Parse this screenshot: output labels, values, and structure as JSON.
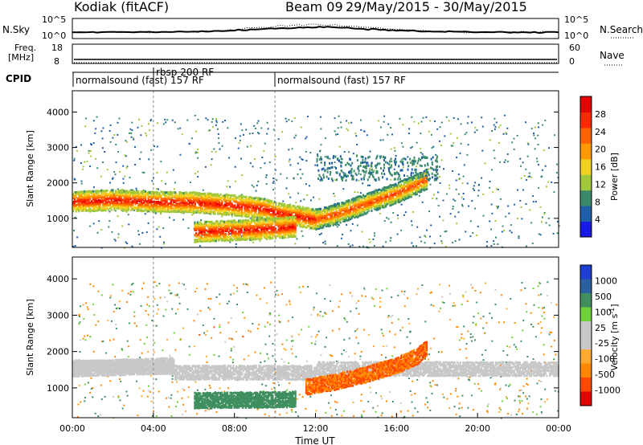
{
  "header": {
    "radar": "Kodiak (fitACF)",
    "beam": "Beam 09",
    "date_range": "29/May/2015 - 30/May/2015"
  },
  "param_labels": {
    "nsky": "N.Sky",
    "nsearch": "N.Search",
    "freq_line1": "Freq.",
    "freq_line2": "[MHz]",
    "nave": "Nave",
    "cpid": "CPID"
  },
  "param_ticks": {
    "noise_left_top": "10^5",
    "noise_left_bottom": "10^0",
    "noise_right_top": "10^5",
    "noise_right_bottom": "10^0",
    "freq_left_top": "18",
    "freq_left_bottom": "8",
    "nave_right_top": "60",
    "nave_right_bottom": "0"
  },
  "cpid_segments": [
    {
      "label": "normalsound (fast) 157 RF",
      "start_hour": 0
    },
    {
      "label": "rbsp 200 RF",
      "start_hour": 4
    },
    {
      "label": "normalsound (fast) 157 RF",
      "start_hour": 10
    }
  ],
  "colors": {
    "power_scale": [
      "#1a1ae6",
      "#1f5fa8",
      "#3a8a6a",
      "#a0c83a",
      "#f0d020",
      "#ff9a00",
      "#ff6400",
      "#ff2a00",
      "#e60000"
    ],
    "velocity_scale": [
      "#e60000",
      "#ff4800",
      "#ff8800",
      "#ffaa33",
      "#c8c8c8",
      "#c8c8c8",
      "#6fd23a",
      "#3f8f5f",
      "#2a5fa0",
      "#1f3fd0"
    ],
    "ground_scatter": "#c8c8c8"
  },
  "chart_data": [
    {
      "type": "heatmap",
      "name": "power",
      "xlabel": "",
      "ylabel": "Slant Range [km]",
      "xlim_hours": [
        0,
        24
      ],
      "ylim": [
        180,
        4600
      ],
      "yticks": [
        1000,
        2000,
        3000,
        4000
      ],
      "colorbar": {
        "label": "Power [dB]",
        "ticks": [
          4,
          8,
          12,
          16,
          20,
          24,
          28
        ],
        "range": [
          0,
          32
        ]
      },
      "features": [
        {
          "desc": "band",
          "x": [
            0,
            2,
            4,
            6,
            8,
            9.5,
            10,
            11,
            12
          ],
          "y": [
            1500,
            1550,
            1500,
            1480,
            1400,
            1300,
            1200,
            1100,
            1000
          ],
          "value": 30
        },
        {
          "desc": "band",
          "x": [
            6,
            7.5,
            9,
            10,
            11
          ],
          "y": [
            650,
            680,
            720,
            750,
            800
          ],
          "value": 30
        },
        {
          "desc": "band",
          "x": [
            12,
            13,
            14,
            15,
            16,
            17,
            17.5
          ],
          "y": [
            1000,
            1150,
            1350,
            1550,
            1750,
            2000,
            2150
          ],
          "value": 26
        }
      ]
    },
    {
      "type": "heatmap",
      "name": "velocity",
      "xlabel": "Time UT",
      "ylabel": "Slant Range [km]",
      "xlim_hours": [
        0,
        24
      ],
      "ylim": [
        180,
        4600
      ],
      "yticks": [
        1000,
        2000,
        3000,
        4000
      ],
      "xticks": [
        "00:00",
        "04:00",
        "08:00",
        "12:00",
        "16:00",
        "20:00",
        "00:00"
      ],
      "colorbar": {
        "label": "Velocity [m s^-1]",
        "ticks": [
          1000,
          500,
          100,
          25,
          -25,
          -100,
          -500,
          -1000
        ]
      },
      "features": [
        {
          "desc": "ground scatter",
          "x": [
            0,
            5
          ],
          "y": [
            1550,
            1650
          ],
          "value": 0
        },
        {
          "desc": "negative velocity band",
          "x": [
            11.5,
            13,
            14.5,
            16,
            17,
            17.5
          ],
          "y": [
            1050,
            1200,
            1400,
            1650,
            1900,
            2150
          ],
          "value": -500
        },
        {
          "desc": "positive velocity band",
          "x": [
            6,
            7.5,
            9.5,
            11
          ],
          "y": [
            680,
            690,
            700,
            720
          ],
          "value": 150
        }
      ]
    }
  ]
}
